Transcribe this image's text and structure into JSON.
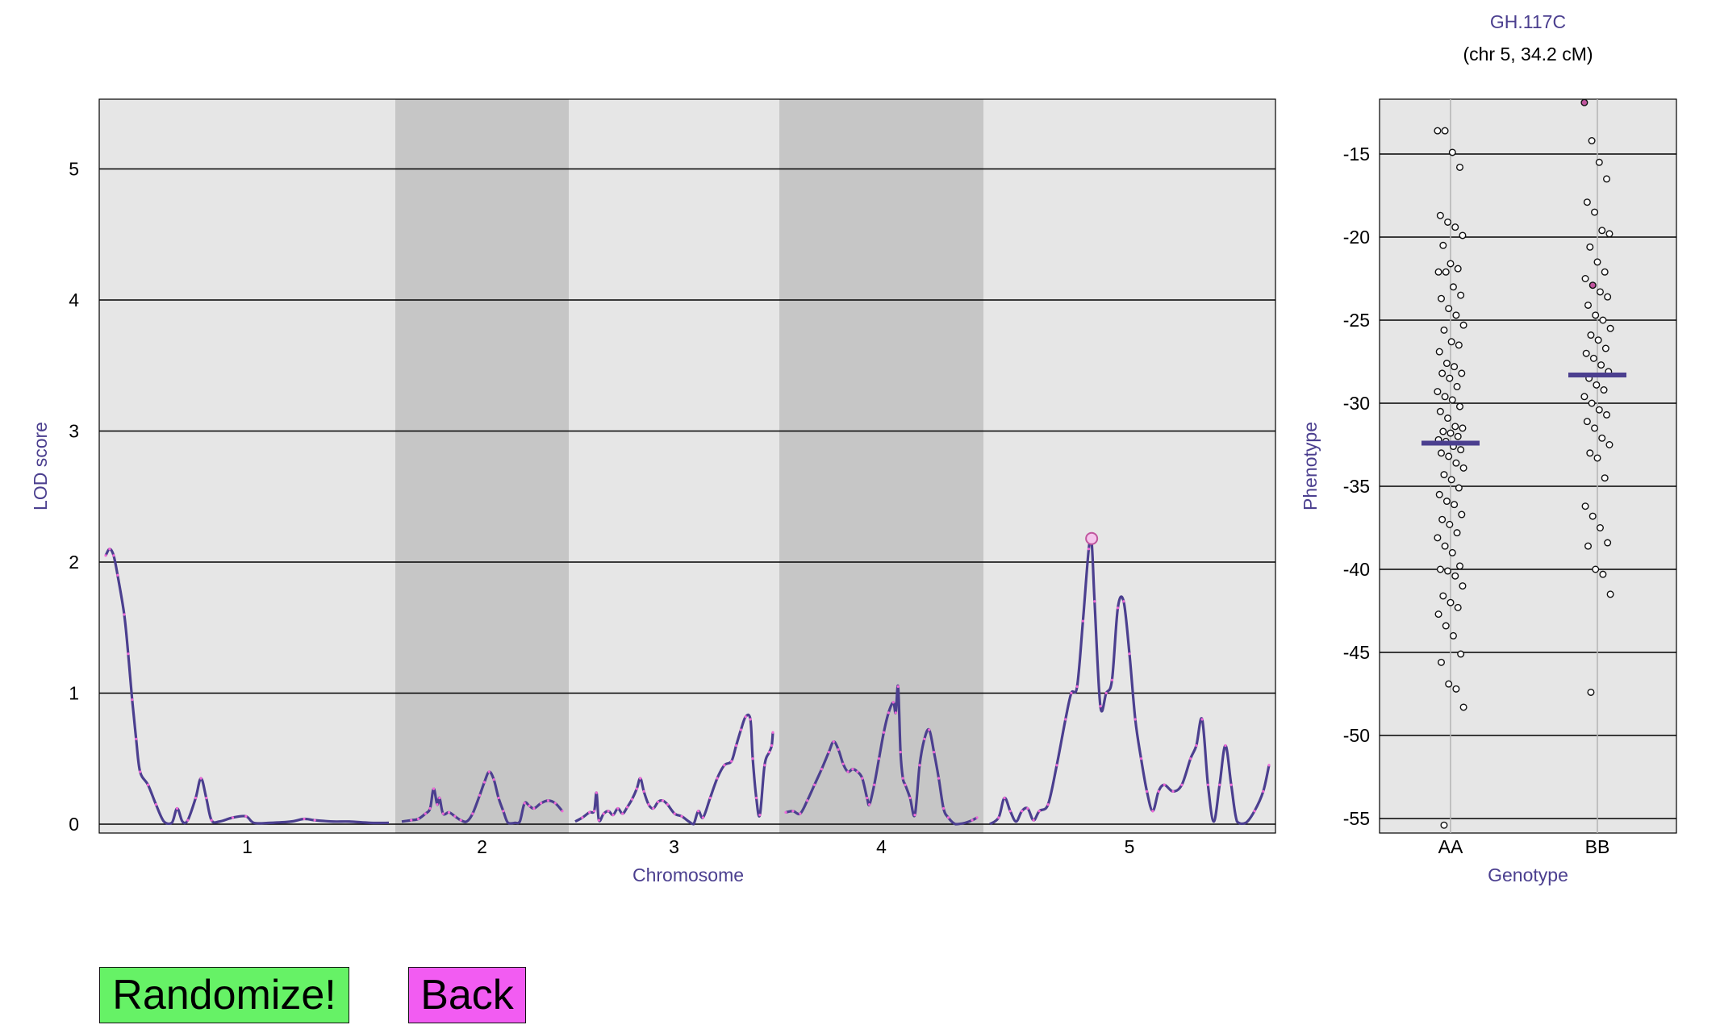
{
  "lod_panel": {
    "ylabel": "LOD score",
    "xlabel": "Chromosome",
    "yticks": [
      "0",
      "1",
      "2",
      "3",
      "4",
      "5"
    ],
    "chromosomes": [
      "1",
      "2",
      "3",
      "4",
      "5"
    ]
  },
  "phenotype_panel": {
    "marker_name": "GH.117C",
    "marker_position": "(chr 5, 34.2 cM)",
    "ylabel": "Phenotype",
    "xlabel": "Genotype",
    "yticks": [
      "-15",
      "-20",
      "-25",
      "-30",
      "-35",
      "-40",
      "-45",
      "-50",
      "-55"
    ],
    "genotypes": [
      "AA",
      "BB"
    ]
  },
  "buttons": {
    "randomize_label": "Randomize!",
    "back_label": "Back"
  },
  "colors": {
    "curve": "#4b3f8f",
    "marker_dot": "#f06ad8",
    "highlight": "#c0559e",
    "panel_bg": "#e6e6e6",
    "panel_shade": "#c6c6c6",
    "mean_line": "#4b3f8f",
    "randomize_bg": "#66f266",
    "back_bg": "#f25cf2"
  },
  "chart_data": [
    {
      "type": "line",
      "xlabel": "Chromosome",
      "ylabel": "LOD score",
      "ylim": [
        0,
        5.5
      ],
      "grid": true,
      "chromosomes": [
        {
          "name": "1",
          "points": [
            [
              0,
              2.05
            ],
            [
              3,
              2.1
            ],
            [
              6,
              2.05
            ],
            [
              9,
              1.9
            ],
            [
              14,
              1.6
            ],
            [
              17,
              1.3
            ],
            [
              20,
              0.95
            ],
            [
              23,
              0.65
            ],
            [
              26,
              0.4
            ],
            [
              32,
              0.3
            ],
            [
              38,
              0.15
            ],
            [
              44,
              0.02
            ],
            [
              50,
              0.01
            ],
            [
              54,
              0.12
            ],
            [
              58,
              0.02
            ],
            [
              62,
              0.03
            ],
            [
              68,
              0.2
            ],
            [
              72,
              0.35
            ],
            [
              76,
              0.2
            ],
            [
              80,
              0.03
            ],
            [
              86,
              0.02
            ],
            [
              96,
              0.05
            ],
            [
              106,
              0.06
            ],
            [
              112,
              0.01
            ],
            [
              124,
              0.01
            ],
            [
              140,
              0.02
            ],
            [
              150,
              0.04
            ],
            [
              158,
              0.03
            ],
            [
              172,
              0.02
            ],
            [
              184,
              0.02
            ],
            [
              200,
              0.01
            ],
            [
              214,
              0.01
            ]
          ]
        },
        {
          "name": "2",
          "points": [
            [
              0,
              0.02
            ],
            [
              8,
              0.03
            ],
            [
              14,
              0.04
            ],
            [
              20,
              0.08
            ],
            [
              24,
              0.12
            ],
            [
              27,
              0.27
            ],
            [
              30,
              0.15
            ],
            [
              32,
              0.2
            ],
            [
              35,
              0.08
            ],
            [
              40,
              0.09
            ],
            [
              45,
              0.06
            ],
            [
              50,
              0.03
            ],
            [
              55,
              0.02
            ],
            [
              60,
              0.08
            ],
            [
              66,
              0.22
            ],
            [
              70,
              0.32
            ],
            [
              74,
              0.4
            ],
            [
              78,
              0.34
            ],
            [
              82,
              0.2
            ],
            [
              86,
              0.1
            ],
            [
              90,
              0.01
            ],
            [
              96,
              0.01
            ],
            [
              100,
              0.02
            ],
            [
              104,
              0.16
            ],
            [
              108,
              0.14
            ],
            [
              112,
              0.12
            ],
            [
              118,
              0.16
            ],
            [
              124,
              0.18
            ],
            [
              130,
              0.16
            ],
            [
              136,
              0.1
            ]
          ]
        },
        {
          "name": "3",
          "points": [
            [
              0,
              0.02
            ],
            [
              6,
              0.05
            ],
            [
              12,
              0.09
            ],
            [
              16,
              0.1
            ],
            [
              18,
              0.24
            ],
            [
              20,
              0.03
            ],
            [
              24,
              0.08
            ],
            [
              28,
              0.1
            ],
            [
              32,
              0.07
            ],
            [
              36,
              0.12
            ],
            [
              40,
              0.08
            ],
            [
              44,
              0.13
            ],
            [
              48,
              0.19
            ],
            [
              52,
              0.27
            ],
            [
              55,
              0.35
            ],
            [
              58,
              0.25
            ],
            [
              62,
              0.15
            ],
            [
              66,
              0.12
            ],
            [
              70,
              0.17
            ],
            [
              74,
              0.18
            ],
            [
              78,
              0.15
            ],
            [
              84,
              0.08
            ],
            [
              90,
              0.06
            ],
            [
              96,
              0.02
            ],
            [
              100,
              0.0
            ],
            [
              104,
              0.1
            ],
            [
              108,
              0.05
            ],
            [
              114,
              0.2
            ],
            [
              120,
              0.35
            ],
            [
              126,
              0.45
            ],
            [
              132,
              0.48
            ],
            [
              136,
              0.6
            ],
            [
              140,
              0.72
            ],
            [
              144,
              0.82
            ],
            [
              148,
              0.8
            ],
            [
              150,
              0.5
            ],
            [
              153,
              0.2
            ],
            [
              156,
              0.07
            ],
            [
              160,
              0.45
            ],
            [
              164,
              0.55
            ],
            [
              166,
              0.6
            ],
            [
              167,
              0.7
            ]
          ]
        },
        {
          "name": "4",
          "points": [
            [
              0,
              0.09
            ],
            [
              6,
              0.1
            ],
            [
              12,
              0.08
            ],
            [
              18,
              0.18
            ],
            [
              24,
              0.3
            ],
            [
              30,
              0.42
            ],
            [
              36,
              0.55
            ],
            [
              40,
              0.63
            ],
            [
              44,
              0.57
            ],
            [
              48,
              0.46
            ],
            [
              52,
              0.4
            ],
            [
              56,
              0.42
            ],
            [
              60,
              0.4
            ],
            [
              64,
              0.35
            ],
            [
              68,
              0.2
            ],
            [
              70,
              0.15
            ],
            [
              74,
              0.3
            ],
            [
              78,
              0.5
            ],
            [
              82,
              0.7
            ],
            [
              86,
              0.85
            ],
            [
              90,
              0.93
            ],
            [
              92,
              0.85
            ],
            [
              94,
              1.05
            ],
            [
              96,
              0.55
            ],
            [
              98,
              0.35
            ],
            [
              100,
              0.3
            ],
            [
              104,
              0.2
            ],
            [
              108,
              0.07
            ],
            [
              112,
              0.45
            ],
            [
              116,
              0.65
            ],
            [
              120,
              0.72
            ],
            [
              124,
              0.55
            ],
            [
              128,
              0.35
            ],
            [
              132,
              0.12
            ],
            [
              136,
              0.05
            ],
            [
              142,
              0.0
            ],
            [
              150,
              0.01
            ],
            [
              156,
              0.03
            ],
            [
              160,
              0.05
            ]
          ]
        },
        {
          "name": "5",
          "points": [
            [
              0,
              0.0
            ],
            [
              6,
              0.05
            ],
            [
              10,
              0.2
            ],
            [
              14,
              0.1
            ],
            [
              18,
              0.02
            ],
            [
              22,
              0.1
            ],
            [
              26,
              0.12
            ],
            [
              30,
              0.03
            ],
            [
              34,
              0.1
            ],
            [
              40,
              0.15
            ],
            [
              46,
              0.45
            ],
            [
              52,
              0.8
            ],
            [
              56,
              1.0
            ],
            [
              60,
              1.05
            ],
            [
              64,
              1.55
            ],
            [
              68,
              2.1
            ],
            [
              70,
              2.15
            ],
            [
              72,
              1.7
            ],
            [
              76,
              0.9
            ],
            [
              80,
              1.0
            ],
            [
              84,
              1.1
            ],
            [
              88,
              1.65
            ],
            [
              92,
              1.7
            ],
            [
              96,
              1.3
            ],
            [
              100,
              0.8
            ],
            [
              104,
              0.5
            ],
            [
              108,
              0.25
            ],
            [
              112,
              0.1
            ],
            [
              116,
              0.25
            ],
            [
              120,
              0.3
            ],
            [
              126,
              0.25
            ],
            [
              132,
              0.3
            ],
            [
              138,
              0.5
            ],
            [
              142,
              0.6
            ],
            [
              146,
              0.8
            ],
            [
              150,
              0.3
            ],
            [
              154,
              0.02
            ],
            [
              158,
              0.3
            ],
            [
              162,
              0.6
            ],
            [
              166,
              0.3
            ],
            [
              170,
              0.02
            ],
            [
              176,
              0.01
            ],
            [
              182,
              0.1
            ],
            [
              188,
              0.25
            ],
            [
              192,
              0.45
            ]
          ]
        }
      ],
      "highlight": {
        "chromosome": "5",
        "position": 70,
        "lod": 2.18
      }
    },
    {
      "type": "scatter",
      "xlabel": "Genotype",
      "ylabel": "Phenotype",
      "categories": [
        "AA",
        "BB"
      ],
      "ylim": [
        -56,
        -12
      ],
      "grid": true,
      "series": [
        {
          "values": [
            -13.6,
            -13.6,
            -14.9,
            -15.8,
            -18.7,
            -19.1,
            -19.4,
            -19.9,
            -20.5,
            -21.6,
            -21.9,
            -22.1,
            -22.1,
            -23.0,
            -23.5,
            -23.7,
            -24.3,
            -24.7,
            -25.3,
            -25.6,
            -26.3,
            -26.5,
            -26.9,
            -27.6,
            -27.8,
            -28.2,
            -28.2,
            -28.5,
            -29.0,
            -29.3,
            -29.6,
            -29.8,
            -30.2,
            -30.5,
            -30.9,
            -31.4,
            -31.5,
            -31.7,
            -31.8,
            -32.0,
            -32.2,
            -32.3,
            -32.6,
            -32.8,
            -33.0,
            -33.2,
            -33.6,
            -33.9,
            -34.3,
            -34.6,
            -35.1,
            -35.5,
            -35.9,
            -36.1,
            -36.7,
            -37.0,
            -37.3,
            -37.8,
            -38.1,
            -38.6,
            -39.0,
            -39.8,
            -40.0,
            -40.1,
            -40.4,
            -41.0,
            -41.6,
            -42.0,
            -42.3,
            -42.7,
            -43.4,
            -44.0,
            -45.1,
            -45.6,
            -46.9,
            -47.2,
            -48.3,
            -55.4
          ],
          "mean": -32.4
        },
        {
          "values": [
            -11.9,
            -14.2,
            -15.5,
            -16.5,
            -17.9,
            -18.5,
            -19.6,
            -19.8,
            -20.6,
            -21.5,
            -22.1,
            -22.5,
            -22.9,
            -23.3,
            -23.6,
            -24.1,
            -24.7,
            -25.0,
            -25.5,
            -25.9,
            -26.2,
            -26.7,
            -27.0,
            -27.3,
            -27.7,
            -28.1,
            -28.5,
            -28.9,
            -29.2,
            -29.6,
            -30.0,
            -30.4,
            -30.7,
            -31.1,
            -31.5,
            -32.1,
            -32.5,
            -33.0,
            -33.3,
            -34.5,
            -36.2,
            -36.8,
            -37.5,
            -38.4,
            -38.6,
            -40.0,
            -40.3,
            -41.5,
            -47.4
          ],
          "mean": -28.3,
          "highlight": [
            -11.9,
            -22.9
          ]
        }
      ]
    }
  ]
}
